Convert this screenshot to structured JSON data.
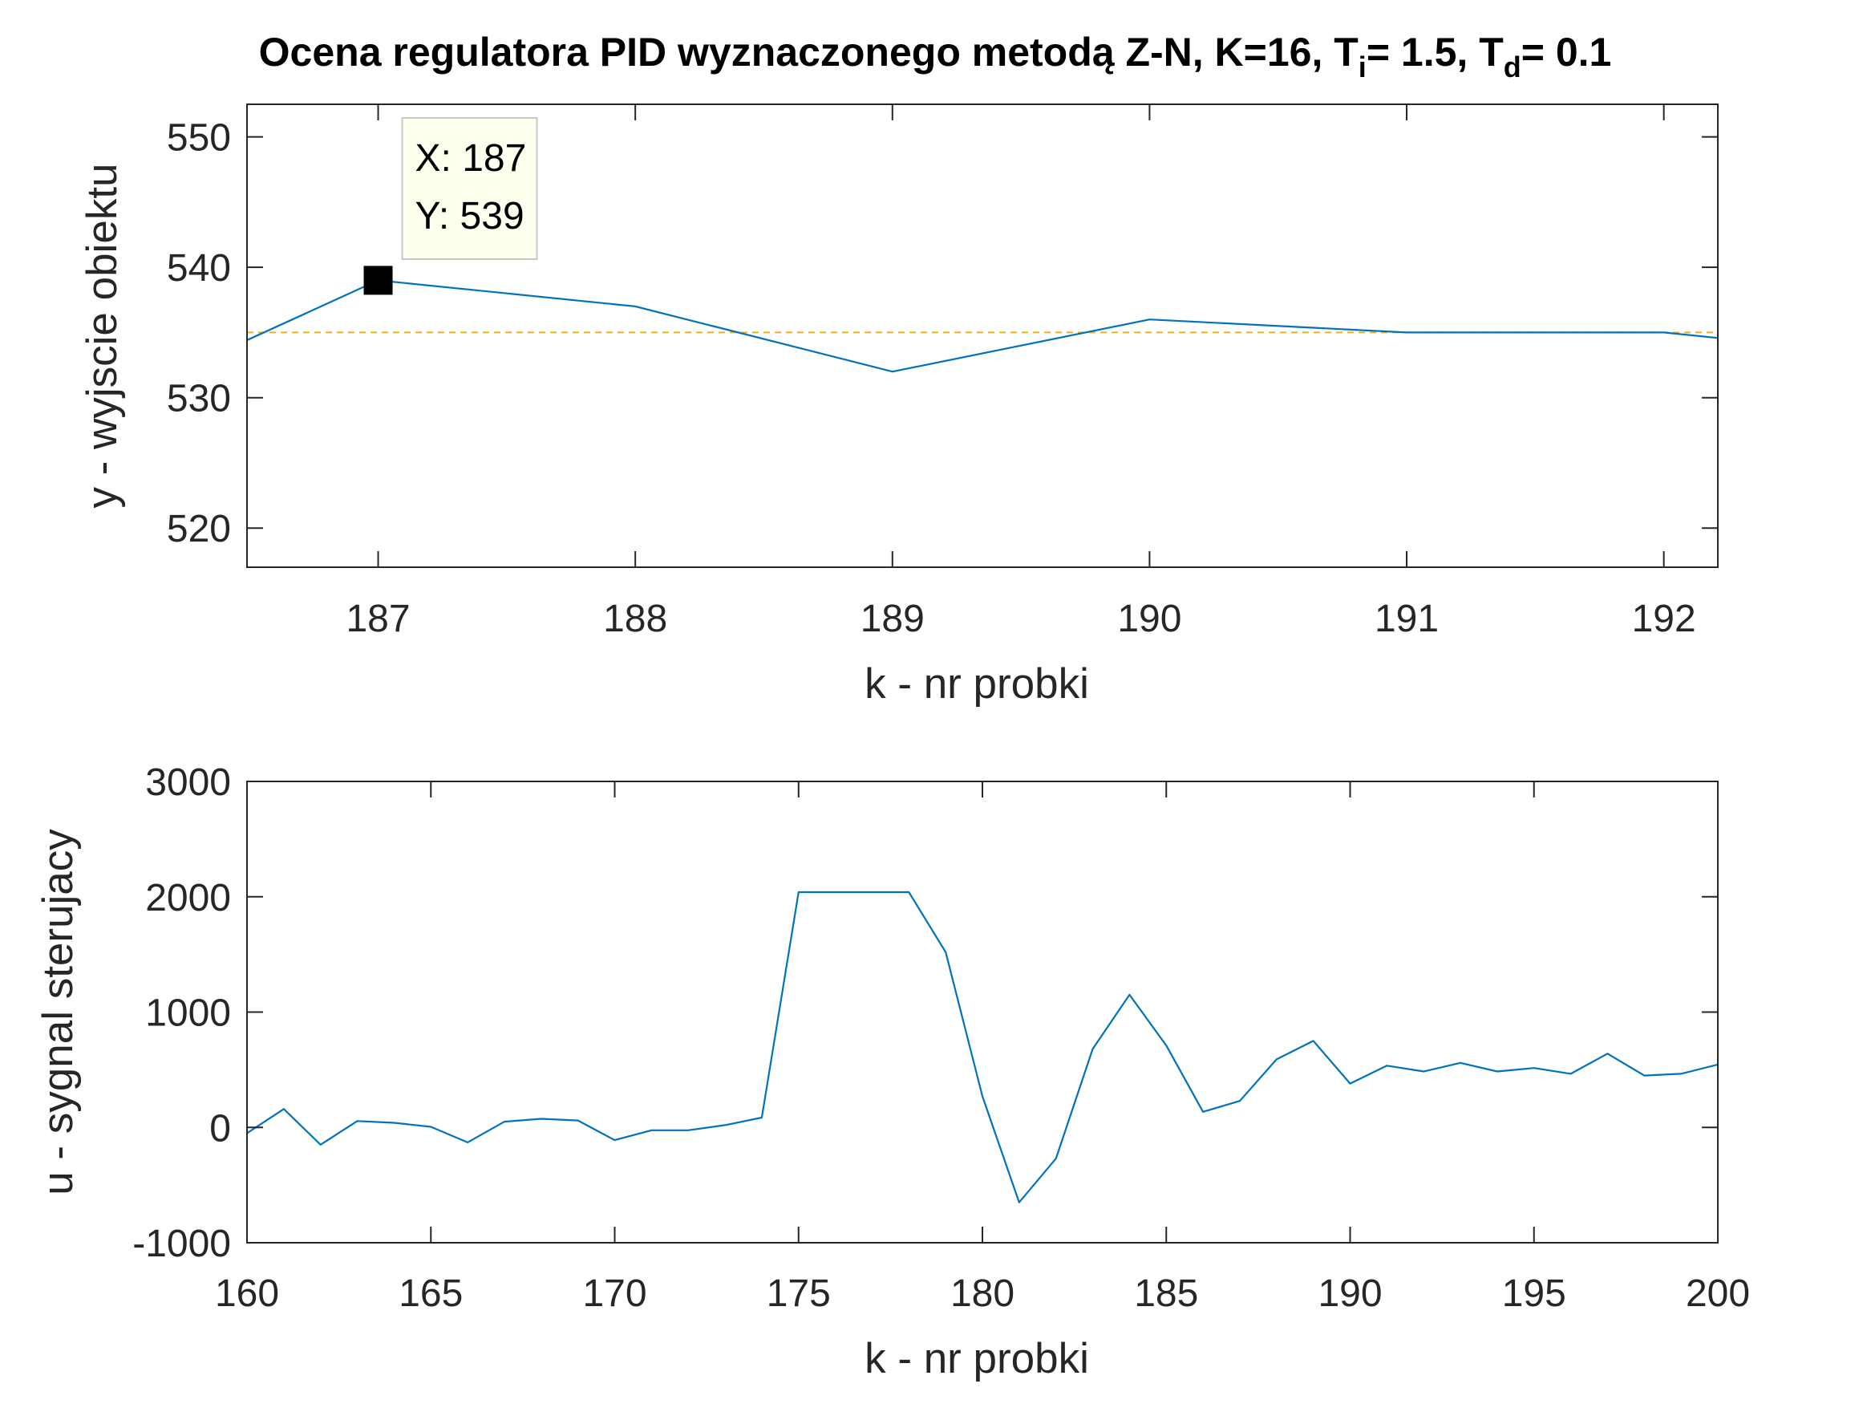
{
  "title": {
    "main": "Ocena regulatora PID wyznaczonego metodą Z-N, K=16, T",
    "sub_i": "i",
    "mid": "= 1.5, T",
    "sub_d": "d",
    "end": "= 0.1"
  },
  "colors": {
    "line": "#0072BD",
    "setpoint": "#EDB120",
    "axis": "#262626",
    "datatip_bg": "#FFFFEE",
    "datatip_border": "#C8C8C8"
  },
  "chart_data": [
    {
      "type": "line",
      "xlabel": "k - nr probki",
      "ylabel": "y - wyjscie obiektu",
      "xlim": [
        186.49,
        192.21
      ],
      "ylim": [
        517,
        552.5
      ],
      "xticks": [
        187,
        188,
        189,
        190,
        191,
        192
      ],
      "yticks": [
        520,
        530,
        540,
        550
      ],
      "series": [
        {
          "role": "output",
          "x": [
            186,
            187,
            188,
            189,
            190,
            191,
            192,
            193
          ],
          "y": [
            530,
            539,
            537,
            532,
            536,
            535,
            535,
            533
          ]
        }
      ],
      "setpoint": 535,
      "datatip": {
        "x": 187,
        "y": 539,
        "x_text": "X: 187",
        "y_text": "Y: 539"
      }
    },
    {
      "type": "line",
      "xlabel": "k - nr probki",
      "ylabel": "u - sygnal sterujacy",
      "xlim": [
        160,
        200
      ],
      "ylim": [
        -1000,
        3000
      ],
      "xticks": [
        160,
        165,
        170,
        175,
        180,
        185,
        190,
        195,
        200
      ],
      "yticks": [
        -1000,
        0,
        1000,
        2000,
        3000
      ],
      "series": [
        {
          "role": "control",
          "x": [
            160,
            161,
            162,
            163,
            164,
            165,
            166,
            167,
            168,
            169,
            170,
            171,
            172,
            173,
            174,
            175,
            176,
            177,
            178,
            179,
            180,
            181,
            182,
            183,
            184,
            185,
            186,
            187,
            188,
            189,
            190,
            191,
            192,
            193,
            194,
            195,
            196,
            197,
            198,
            199,
            200
          ],
          "y": [
            -50,
            160,
            -150,
            55,
            40,
            5,
            -130,
            50,
            75,
            60,
            -110,
            -25,
            -25,
            20,
            85,
            2040,
            2040,
            2040,
            2040,
            1520,
            270,
            -650,
            -270,
            680,
            1150,
            710,
            135,
            230,
            590,
            750,
            380,
            535,
            485,
            560,
            485,
            515,
            465,
            640,
            450,
            465,
            545
          ]
        }
      ]
    }
  ]
}
